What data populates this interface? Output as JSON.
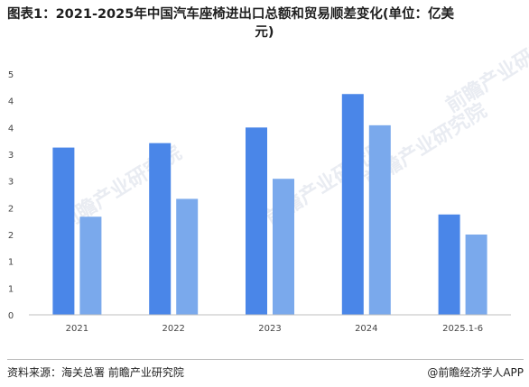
{
  "header": {
    "title_line1": "图表1：2021-2025年中国汽车座椅进出口总额和贸易顺差变化(单位：亿美",
    "title_line2": "元)"
  },
  "chart_data": {
    "type": "bar",
    "title": "图表1：2021-2025年中国汽车座椅进出口总额和贸易顺差变化(单位：亿美元)",
    "categories": [
      "2021",
      "2022",
      "2023",
      "2024",
      "2025.1-6"
    ],
    "series": [
      {
        "values": [
          3.75,
          3.85,
          4.2,
          4.95,
          2.25
        ],
        "color": "#4a86e8"
      },
      {
        "values": [
          2.2,
          2.6,
          3.05,
          4.25,
          1.8
        ],
        "color": "#7aa9ec"
      }
    ],
    "yticks": [
      "0",
      "1",
      "1",
      "2",
      "2",
      "3",
      "3",
      "4",
      "4",
      "5"
    ],
    "ylim": [
      0,
      5.4
    ],
    "xlabel": "",
    "ylabel": "",
    "grid": false
  },
  "watermark": {
    "text": "前瞻产业研究院"
  },
  "footer": {
    "source": "资料来源：海关总署 前瞻产业研究院",
    "brand": "@前瞻经济学人APP"
  }
}
